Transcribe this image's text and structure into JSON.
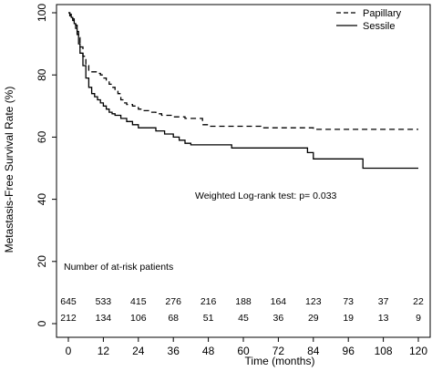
{
  "chart_data": {
    "type": "line",
    "subtype": "kaplan-meier step curves",
    "xlabel": "Time (months)",
    "ylabel": "Metastasis-Free Survival Rate (%)",
    "xlim": [
      0,
      120
    ],
    "ylim": [
      0,
      100
    ],
    "x_ticks": [
      0,
      12,
      24,
      36,
      48,
      60,
      72,
      84,
      96,
      108,
      120
    ],
    "y_ticks": [
      0,
      20,
      40,
      60,
      80,
      100
    ],
    "grid": false,
    "legend_position": "top-right",
    "series": [
      {
        "name": "Papillary",
        "line_style": "dashed",
        "color": "#000000",
        "x": [
          0,
          0.5,
          1,
          1.5,
          2,
          2.5,
          3,
          3.5,
          4,
          5,
          6,
          7,
          8,
          9,
          10,
          11,
          12,
          13,
          14,
          15,
          16,
          17,
          18,
          19,
          20,
          22,
          24,
          26,
          28,
          30,
          32,
          34,
          36,
          38,
          40,
          42,
          44,
          46,
          48,
          54,
          60,
          66,
          72,
          78,
          84,
          96,
          108,
          120
        ],
        "y": [
          100,
          99.5,
          99,
          98,
          97,
          96,
          94,
          92,
          89,
          86,
          83,
          81,
          81,
          81,
          80.5,
          80,
          79,
          78,
          77,
          76,
          75,
          74,
          72,
          71,
          70.5,
          70,
          69,
          68.5,
          68,
          67.5,
          67,
          67,
          66.5,
          66.5,
          66,
          66,
          66,
          64,
          63.5,
          63.5,
          63.5,
          63,
          63,
          63,
          62.5,
          62.5,
          62.5,
          62.5
        ]
      },
      {
        "name": "Sessile",
        "line_style": "solid",
        "color": "#000000",
        "x": [
          0,
          0.5,
          1,
          1.5,
          2,
          2.5,
          3,
          3.5,
          4,
          5,
          6,
          7,
          8,
          9,
          10,
          11,
          12,
          13,
          14,
          15,
          16,
          18,
          20,
          22,
          24,
          26,
          30,
          33,
          36,
          38,
          40,
          42,
          48,
          54,
          56,
          60,
          72,
          82,
          84,
          88,
          92,
          96,
          101,
          108,
          120
        ],
        "y": [
          100,
          99,
          98.5,
          97.5,
          96.5,
          95,
          93,
          90,
          87,
          83,
          79,
          76,
          74,
          73,
          72,
          71,
          70,
          69,
          68,
          67.5,
          67,
          66,
          65,
          64,
          63,
          63,
          62,
          61,
          60,
          59,
          58,
          57.5,
          57.5,
          57.5,
          56.5,
          56.5,
          56.5,
          55,
          53,
          53,
          53,
          53,
          50,
          50,
          50
        ]
      }
    ],
    "annotation": "Weighted Log-rank test: p= 0.033",
    "risk_table": {
      "title": "Number of at-risk patients",
      "times": [
        0,
        12,
        24,
        36,
        48,
        60,
        72,
        84,
        96,
        108,
        120
      ],
      "rows": [
        {
          "values": [
            "645",
            "533",
            "415",
            "276",
            "216",
            "188",
            "164",
            "123",
            "73",
            "37",
            "22"
          ]
        },
        {
          "values": [
            "212",
            "134",
            "106",
            "68",
            "51",
            "45",
            "36",
            "29",
            "19",
            "13",
            "9"
          ]
        }
      ]
    }
  }
}
